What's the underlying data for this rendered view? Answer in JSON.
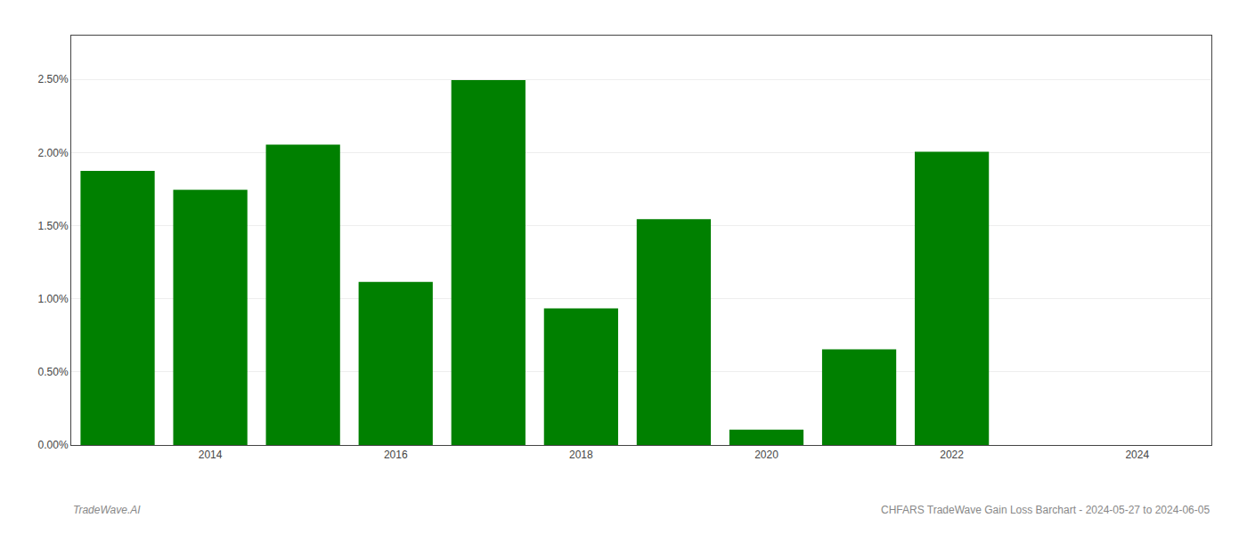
{
  "chart_data": {
    "type": "bar",
    "x": [
      2013,
      2014,
      2015,
      2016,
      2017,
      2018,
      2019,
      2020,
      2021,
      2022,
      2023
    ],
    "values": [
      0.01875,
      0.01745,
      0.02055,
      0.01115,
      0.02495,
      0.00935,
      0.01545,
      0.00105,
      0.00655,
      0.02005,
      0.0
    ],
    "color": "#008000",
    "xlim": [
      2012.5,
      2024.8
    ],
    "xticks": [
      2014,
      2016,
      2018,
      2020,
      2022,
      2024
    ],
    "ylim": [
      0.0,
      0.028
    ],
    "yticks": [
      {
        "value": 0.0,
        "label": "0.00%"
      },
      {
        "value": 0.005,
        "label": "0.50%"
      },
      {
        "value": 0.01,
        "label": "1.00%"
      },
      {
        "value": 0.015,
        "label": "1.50%"
      },
      {
        "value": 0.02,
        "label": "2.00%"
      },
      {
        "value": 0.025,
        "label": "2.50%"
      }
    ],
    "grid": true,
    "annotations": [
      "TradeWave.AI",
      "CHFARS TradeWave Gain Loss Barchart - 2024-05-27 to 2024-06-05"
    ]
  }
}
